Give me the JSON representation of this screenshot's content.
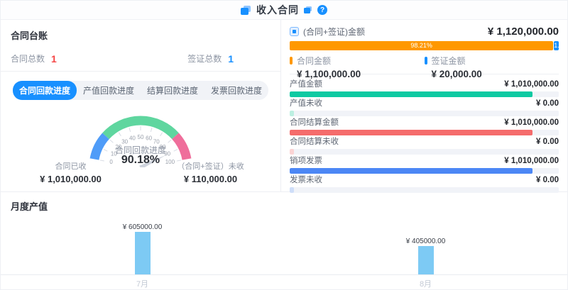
{
  "header": {
    "title": "收入合同",
    "help_glyph": "?"
  },
  "ledger": {
    "title": "合同台账",
    "stats": [
      {
        "label": "合同总数",
        "value": "1",
        "color": "#f54645"
      },
      {
        "label": "签证总数",
        "value": "1",
        "color": "#1890ff"
      }
    ]
  },
  "tabs": [
    {
      "label": "合同回款进度",
      "active": true
    },
    {
      "label": "产值回款进度",
      "active": false
    },
    {
      "label": "结算回款进度",
      "active": false
    },
    {
      "label": "发票回款进度",
      "active": false
    }
  ],
  "gauge_footer": {
    "received_label": "合同已收",
    "received_value": "¥ 1,010,000.00",
    "unreceived_label": "（合同+签证）未收",
    "unreceived_value": "¥ 110,000.00"
  },
  "right_panel": {
    "total": {
      "label": "(合同+签证)金额",
      "value": "¥ 1,120,000.00"
    },
    "stacked_bar": {
      "segments": [
        {
          "label": "98.21%",
          "percent": 98.21,
          "color": "#ff9800"
        },
        {
          "label": "1.79%",
          "percent": 1.79,
          "color": "#1890ff"
        }
      ]
    },
    "legend": [
      {
        "label": "合同金额",
        "value": "¥ 1,100,000.00",
        "color": "#ff9800"
      },
      {
        "label": "签证金额",
        "value": "¥ 20,000.00",
        "color": "#1890ff"
      }
    ],
    "metrics": [
      {
        "label": "产值金额",
        "value": "¥ 1,010,000.00",
        "percent": 90.18,
        "color": "#0ecaa2"
      },
      {
        "label": "产值未收",
        "value": "¥ 0.00",
        "percent": 1.5,
        "color": "#bcefe1"
      },
      {
        "label": "合同结算金额",
        "value": "¥ 1,010,000.00",
        "percent": 90.18,
        "color": "#f56c6c"
      },
      {
        "label": "合同结算未收",
        "value": "¥ 0.00",
        "percent": 1.5,
        "color": "#fbd4d4"
      },
      {
        "label": "销项发票",
        "value": "¥ 1,010,000.00",
        "percent": 90.18,
        "color": "#4c87f5"
      },
      {
        "label": "发票未收",
        "value": "¥ 0.00",
        "percent": 1.5,
        "color": "#cfdef9"
      }
    ]
  },
  "chart_data": [
    {
      "type": "gauge",
      "title": "合同回款进度",
      "value": 90.18,
      "value_label": "90.18%",
      "min": 0,
      "max": 100,
      "ticks": [
        0,
        10,
        20,
        30,
        40,
        50,
        60,
        70,
        80,
        90,
        100
      ],
      "segments": [
        {
          "from": 0,
          "to": 20,
          "color": "#4f9cf8"
        },
        {
          "from": 20,
          "to": 80,
          "color": "#5fd69f"
        },
        {
          "from": 80,
          "to": 100,
          "color": "#ef6e9b"
        }
      ]
    },
    {
      "type": "bar",
      "title": "月度产值",
      "categories": [
        "7月",
        "8月"
      ],
      "values": [
        605000,
        405000
      ],
      "labels": [
        "¥ 605000.00",
        "¥ 405000.00"
      ],
      "bar_color": "#7dcaf4",
      "ylabel": "",
      "xlabel": "",
      "ylim": [
        0,
        850000
      ],
      "grid": false,
      "legend": "none"
    }
  ]
}
